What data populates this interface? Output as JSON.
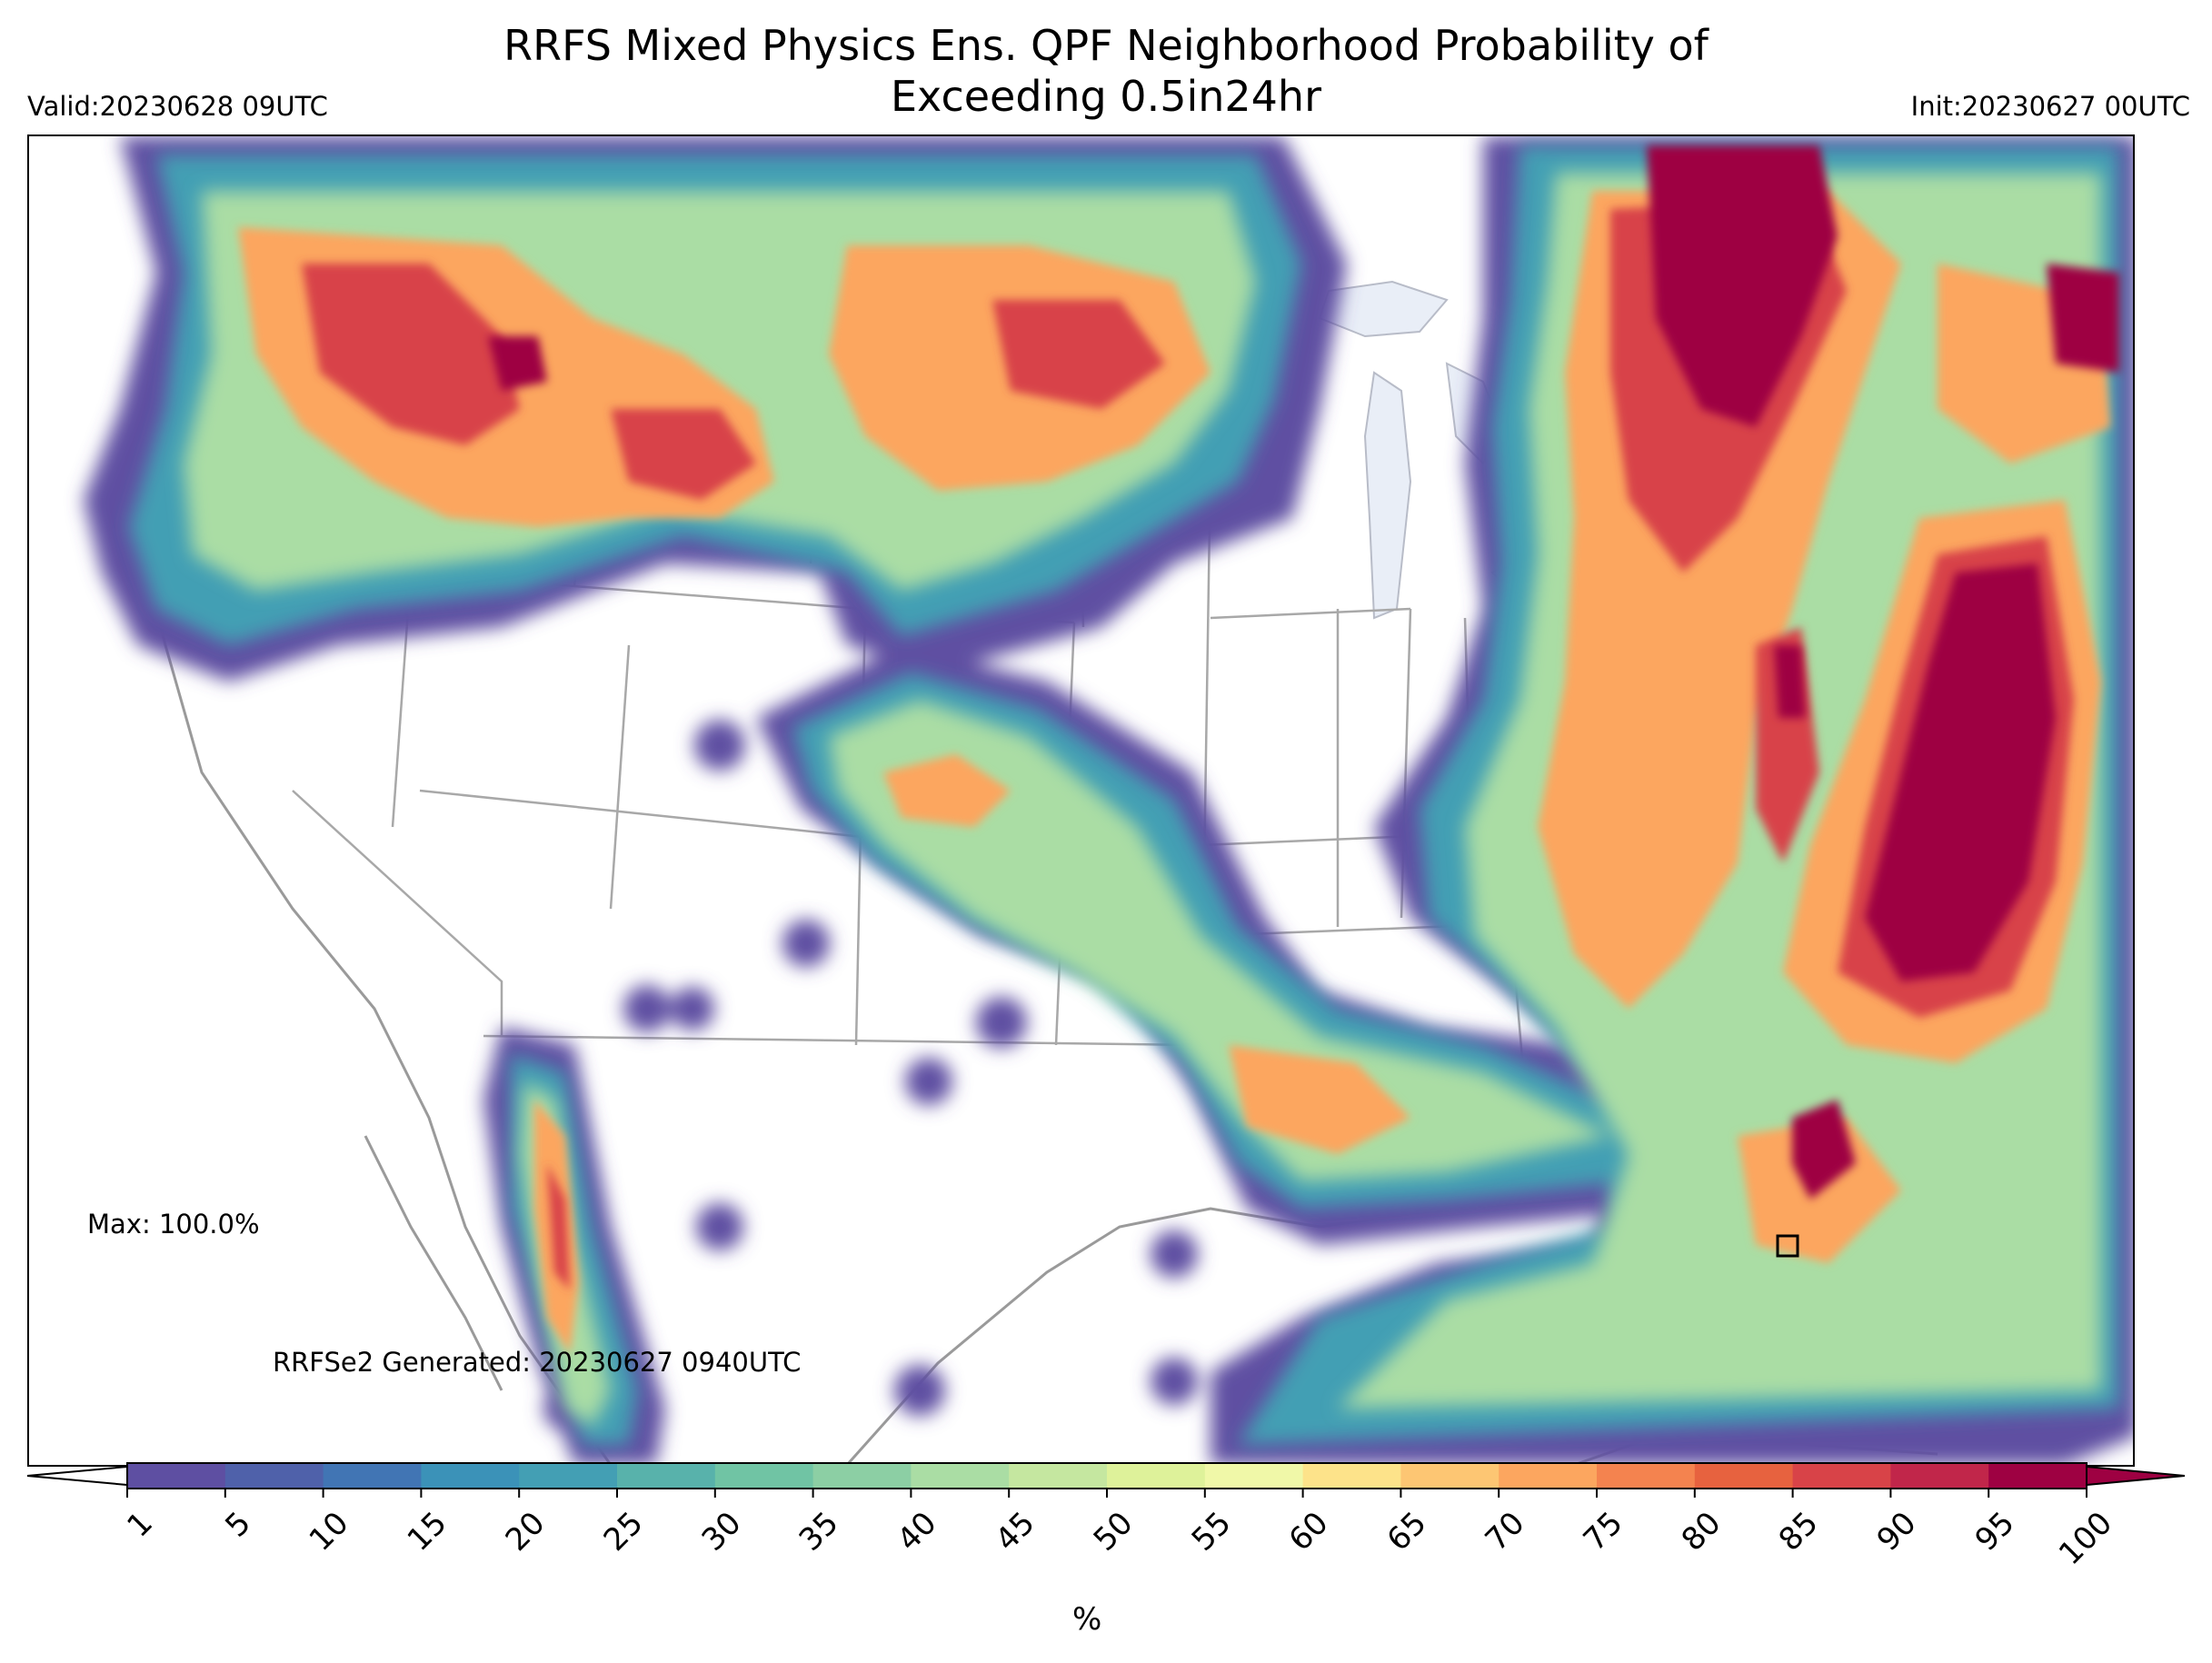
{
  "title": {
    "line1": "RRFS Mixed Physics Ens. QPF Neighborhood Probability of",
    "line2": "Exceeding 0.5in24hr"
  },
  "valid_label": "Valid:20230628 09UTC",
  "init_label": "Init:20230627 00UTC",
  "max_label": "Max: 100.0%",
  "generated_label": "RRFSe2 Generated: 20230627 0940UTC",
  "colorbar": {
    "unit": "%",
    "ticks": [
      "1",
      "5",
      "10",
      "15",
      "20",
      "25",
      "30",
      "35",
      "40",
      "45",
      "50",
      "55",
      "60",
      "65",
      "70",
      "75",
      "80",
      "85",
      "90",
      "95",
      "100"
    ],
    "colors": [
      "#5e4fa2",
      "#4f61aa",
      "#4175b4",
      "#3b92b8",
      "#439fb4",
      "#58b2ab",
      "#70c4a4",
      "#8ccfa4",
      "#aadda4",
      "#c5e7a0",
      "#def29a",
      "#f0f8a8",
      "#fde38a",
      "#fdc673",
      "#fca65f",
      "#f4834f",
      "#e7623f",
      "#d84348",
      "#c1264a",
      "#9e0142"
    ]
  },
  "map": {
    "projection": "CONUS Lambert",
    "highlight_box": "square marker",
    "colors": {
      "lake_fill": "#e9eef7",
      "border_line": "#a8a8a8",
      "coast_line": "#9a9a9a"
    }
  }
}
